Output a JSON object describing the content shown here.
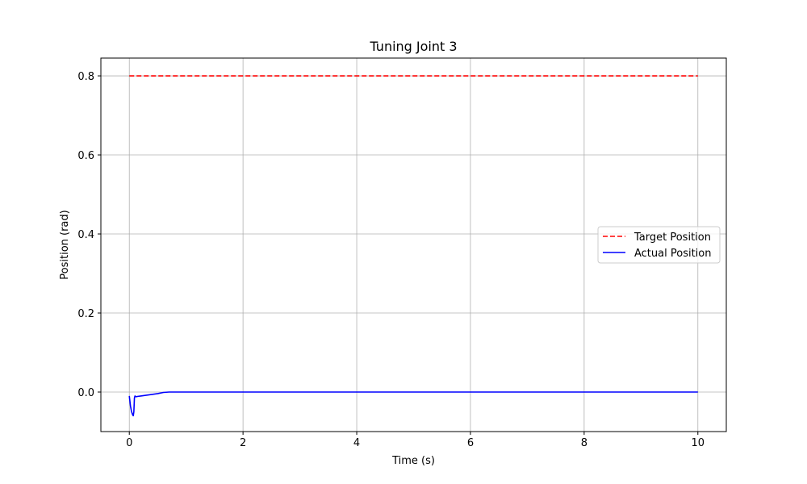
{
  "chart_data": {
    "type": "line",
    "title": "Tuning Joint 3",
    "xlabel": "Time (s)",
    "ylabel": "Position (rad)",
    "xlim": [
      -0.5,
      10.5
    ],
    "ylim": [
      -0.1,
      0.845
    ],
    "x_ticks": [
      0,
      2,
      4,
      6,
      8,
      10
    ],
    "x_tick_labels": [
      "0",
      "2",
      "4",
      "6",
      "8",
      "10"
    ],
    "y_ticks": [
      0.0,
      0.2,
      0.4,
      0.6,
      0.8
    ],
    "y_tick_labels": [
      "0.0",
      "0.2",
      "0.4",
      "0.6",
      "0.8"
    ],
    "grid": true,
    "legend_position": "center-right",
    "series": [
      {
        "name": "Target Position",
        "color": "#ff0000",
        "line_style": "dashed",
        "x": [
          0,
          10
        ],
        "y": [
          0.8,
          0.8
        ]
      },
      {
        "name": "Actual Position",
        "color": "#0000ff",
        "line_style": "solid",
        "x": [
          0,
          0.02,
          0.04,
          0.06,
          0.07,
          0.08,
          0.09,
          0.1,
          0.12,
          0.15,
          0.2,
          0.3,
          0.4,
          0.5,
          0.6,
          0.7,
          1,
          2,
          4,
          6,
          8,
          10
        ],
        "y": [
          -0.01,
          -0.035,
          -0.05,
          -0.058,
          -0.06,
          -0.05,
          -0.015,
          -0.01,
          -0.012,
          -0.011,
          -0.01,
          -0.008,
          -0.006,
          -0.004,
          -0.001,
          0.0,
          0.0,
          0.0,
          0.0,
          0.0,
          0.0,
          0.0
        ]
      }
    ]
  }
}
